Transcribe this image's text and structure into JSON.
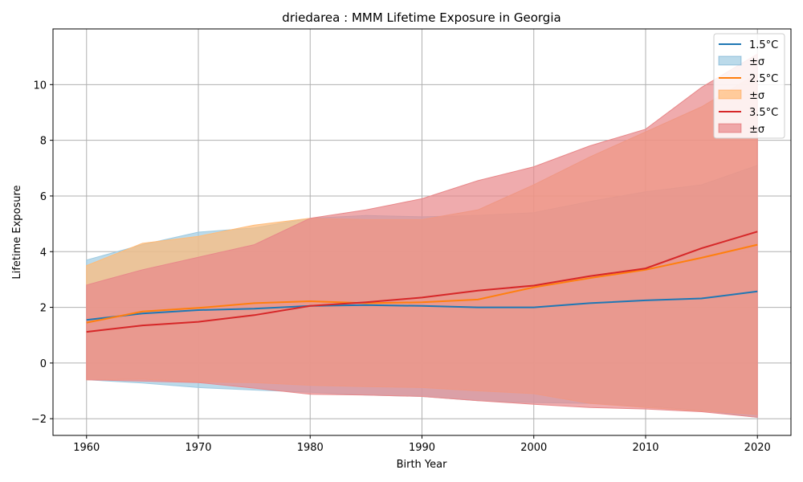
{
  "chart_data": {
    "type": "area",
    "title": "driedarea : MMM Lifetime Exposure in Georgia",
    "xlabel": "Birth Year",
    "ylabel": "Lifetime Exposure",
    "xlim": [
      1957,
      2023
    ],
    "ylim": [
      -2.6,
      12
    ],
    "x_ticks": [
      1960,
      1970,
      1980,
      1990,
      2000,
      2010,
      2020
    ],
    "y_ticks": [
      -2,
      0,
      2,
      4,
      6,
      8,
      10
    ],
    "grid": true,
    "legend_position": "upper right",
    "x": [
      1960,
      1965,
      1970,
      1975,
      1980,
      1985,
      1990,
      1995,
      2000,
      2005,
      2010,
      2015,
      2020
    ],
    "series": [
      {
        "name": "1.5°C",
        "band_label": "±σ",
        "color": "#1f77b4",
        "fill": "#9ecae1",
        "mean": [
          1.55,
          1.78,
          1.9,
          1.95,
          2.05,
          2.08,
          2.05,
          2.0,
          2.0,
          2.15,
          2.25,
          2.32,
          2.57
        ],
        "upper": [
          3.7,
          4.25,
          4.7,
          4.85,
          5.2,
          5.3,
          5.25,
          5.3,
          5.4,
          5.8,
          6.15,
          6.4,
          7.1
        ],
        "lower": [
          -0.6,
          -0.72,
          -0.88,
          -0.97,
          -1.05,
          -1.15,
          -1.2,
          -1.35,
          -1.42,
          -1.45,
          -1.55,
          -1.7,
          -1.95
        ]
      },
      {
        "name": "2.5°C",
        "band_label": "±σ",
        "color": "#ff7f0e",
        "fill": "#ffbb78",
        "mean": [
          1.45,
          1.85,
          1.98,
          2.15,
          2.22,
          2.15,
          2.18,
          2.28,
          2.72,
          3.05,
          3.35,
          3.78,
          4.25
        ],
        "upper": [
          3.5,
          4.3,
          4.55,
          4.95,
          5.2,
          5.15,
          5.15,
          5.5,
          6.4,
          7.4,
          8.3,
          9.2,
          10.4
        ],
        "lower": [
          -0.6,
          -0.58,
          -0.68,
          -0.7,
          -0.8,
          -0.85,
          -0.88,
          -1.0,
          -1.1,
          -1.45,
          -1.6,
          -1.72,
          -1.85
        ]
      },
      {
        "name": "3.5°C",
        "band_label": "±σ",
        "color": "#d62728",
        "fill": "#e8888a",
        "mean": [
          1.12,
          1.35,
          1.48,
          1.72,
          2.05,
          2.18,
          2.35,
          2.6,
          2.78,
          3.12,
          3.4,
          4.12,
          4.72
        ],
        "upper": [
          2.8,
          3.35,
          3.8,
          4.25,
          5.2,
          5.5,
          5.9,
          6.55,
          7.05,
          7.8,
          8.4,
          9.9,
          11.1
        ],
        "lower": [
          -0.6,
          -0.65,
          -0.7,
          -0.9,
          -1.12,
          -1.15,
          -1.2,
          -1.35,
          -1.48,
          -1.6,
          -1.65,
          -1.75,
          -1.95
        ]
      }
    ]
  }
}
